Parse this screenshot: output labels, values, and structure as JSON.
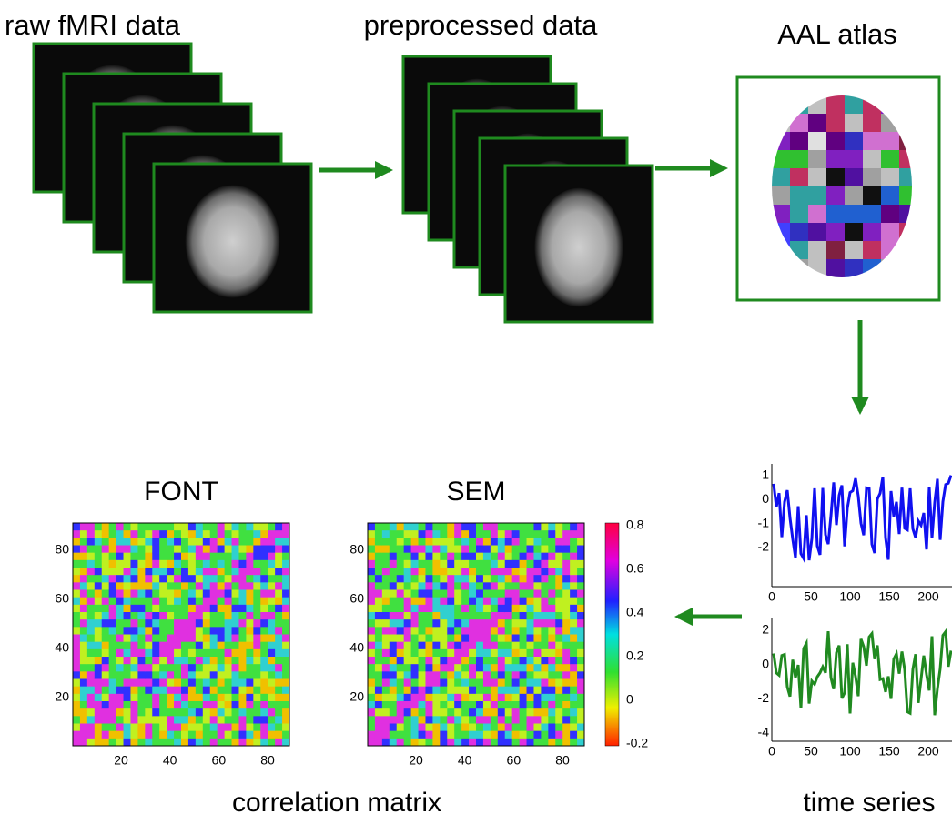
{
  "stages": {
    "raw": "raw fMRI data",
    "preprocessed": "preprocessed data",
    "atlas": "AAL atlas",
    "correlation": "correlation matrix",
    "time_series": "time series"
  },
  "matrices": [
    {
      "title": "FONT",
      "xticks": [
        20,
        40,
        60,
        80
      ],
      "yticks": [
        20,
        40,
        60,
        80
      ]
    },
    {
      "title": "SEM",
      "xticks": [
        20,
        40,
        60,
        80
      ],
      "yticks": [
        20,
        40,
        60,
        80
      ]
    }
  ],
  "colorbar": {
    "ticks": [
      -0.2,
      0,
      0.2,
      0.4,
      0.6,
      0.8
    ]
  },
  "time_series_plots": [
    {
      "color": "#1010f0",
      "yticks": [
        -2,
        -1,
        0,
        1
      ],
      "xticks": [
        0,
        50,
        100,
        150,
        200
      ]
    },
    {
      "color": "#208a20",
      "yticks": [
        -4,
        -2,
        0,
        2
      ],
      "xticks": [
        0,
        50,
        100,
        150,
        200
      ]
    }
  ]
}
